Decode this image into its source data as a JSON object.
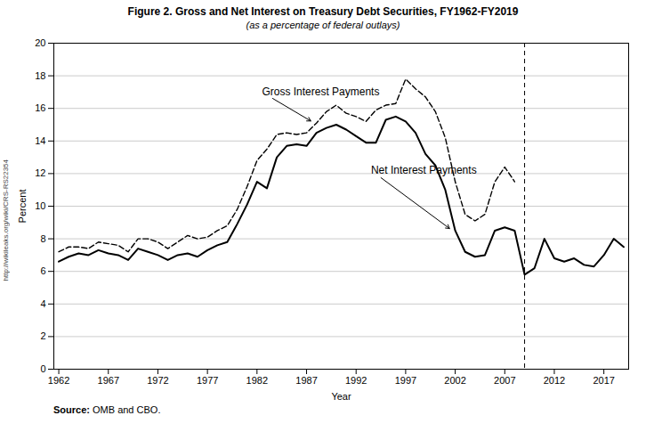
{
  "chart_data": {
    "type": "line",
    "title": "Figure 2. Gross and Net Interest on Treasury Debt Securities, FY1962-FY2019",
    "subtitle": "(as a percentage of federal outlays)",
    "xlabel": "Year",
    "ylabel": "Percent",
    "source_label": "Source:",
    "source": "OMB and CBO.",
    "watermark": "http://wikileaks.org/wiki/CRS-RS22354",
    "x": [
      1962,
      1963,
      1964,
      1965,
      1966,
      1967,
      1968,
      1969,
      1970,
      1971,
      1972,
      1973,
      1974,
      1975,
      1976,
      1977,
      1978,
      1979,
      1980,
      1981,
      1982,
      1983,
      1984,
      1985,
      1986,
      1987,
      1988,
      1989,
      1990,
      1991,
      1992,
      1993,
      1994,
      1995,
      1996,
      1997,
      1998,
      1999,
      2000,
      2001,
      2002,
      2003,
      2004,
      2005,
      2006,
      2007,
      2008,
      2009,
      2010,
      2011,
      2012,
      2013,
      2014,
      2015,
      2016,
      2017,
      2018,
      2019
    ],
    "series": [
      {
        "color": "#000000",
        "line_style": "dashed",
        "values": [
          7.2,
          7.5,
          7.5,
          7.4,
          7.8,
          7.7,
          7.6,
          7.2,
          8.0,
          8.0,
          7.8,
          7.4,
          7.8,
          8.2,
          8.0,
          8.1,
          8.5,
          8.8,
          9.8,
          11.2,
          12.8,
          13.5,
          14.4,
          14.5,
          14.4,
          14.5,
          15.1,
          15.8,
          16.2,
          15.7,
          15.5,
          15.2,
          15.9,
          16.2,
          16.3,
          17.8,
          17.2,
          16.7,
          15.8,
          14.2,
          11.5,
          9.5,
          9.1,
          9.5,
          11.5,
          12.4,
          11.5,
          null,
          null,
          null,
          null,
          null,
          null,
          null,
          null,
          null,
          null,
          null
        ]
      },
      {
        "color": "#000000",
        "line_style": "solid",
        "values": [
          6.6,
          6.9,
          7.1,
          7.0,
          7.3,
          7.1,
          7.0,
          6.7,
          7.4,
          7.2,
          7.0,
          6.7,
          7.0,
          7.1,
          6.9,
          7.3,
          7.6,
          7.8,
          8.9,
          10.1,
          11.5,
          11.1,
          13.0,
          13.7,
          13.8,
          13.7,
          14.5,
          14.8,
          15.0,
          14.7,
          14.3,
          13.9,
          13.9,
          15.3,
          15.5,
          15.2,
          14.5,
          13.2,
          12.5,
          11.0,
          8.5,
          7.2,
          6.9,
          7.0,
          8.5,
          8.7,
          8.5,
          5.8,
          6.2,
          8.0,
          6.8,
          6.6,
          6.8,
          6.4,
          6.3,
          7.0,
          8.0,
          7.5
        ]
      }
    ],
    "vlines": [
      2009
    ],
    "annotations": [
      {
        "text": "Gross Interest Payments",
        "x": 1982.5,
        "y": 17.0,
        "arrow_x": 1987.5,
        "arrow_y": 15.2
      },
      {
        "text": "Net Interest Payments",
        "x": 1993.5,
        "y": 12.2,
        "arrow_x": 2001.5,
        "arrow_y": 8.6
      }
    ],
    "xlim": [
      1961.5,
      2019.5
    ],
    "ylim": [
      0,
      20
    ],
    "xticks": [
      1962,
      1967,
      1972,
      1977,
      1982,
      1987,
      1992,
      1997,
      2002,
      2007,
      2012,
      2017
    ],
    "yticks": [
      0,
      2,
      4,
      6,
      8,
      10,
      12,
      14,
      16,
      18,
      20
    ],
    "grid": "y"
  }
}
